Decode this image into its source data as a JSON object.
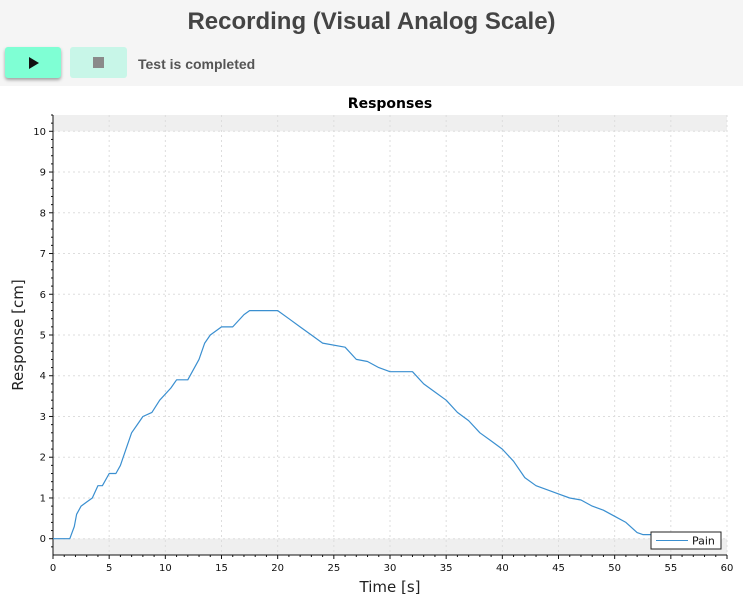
{
  "header": {
    "title": "Recording (Visual Analog Scale)",
    "play_icon": "play-icon",
    "stop_icon": "stop-icon",
    "status": "Test is completed"
  },
  "colors": {
    "play_button": "#7fffd4",
    "stop_button": "#c8f6e8",
    "series": "#3a8fd0"
  },
  "chart_data": {
    "type": "line",
    "title": "Responses",
    "xlabel": "Time [s]",
    "ylabel": "Response [cm]",
    "xlim": [
      0,
      60
    ],
    "ylim": [
      -0.4,
      10.4
    ],
    "x_ticks": [
      0,
      5,
      10,
      15,
      20,
      25,
      30,
      35,
      40,
      45,
      50,
      55,
      60
    ],
    "y_ticks": [
      0,
      1,
      2,
      3,
      4,
      5,
      6,
      7,
      8,
      9,
      10
    ],
    "grid": true,
    "legend_position": "bottom-right",
    "series": [
      {
        "name": "Pain",
        "x": [
          0,
          1.5,
          1.9,
          2.1,
          2.5,
          3.0,
          3.5,
          4.0,
          4.4,
          5.0,
          5.6,
          6.0,
          6.5,
          7.0,
          7.5,
          8.0,
          8.8,
          9.5,
          10.5,
          11.0,
          12.0,
          13.0,
          13.5,
          14.0,
          15.0,
          16.0,
          17.0,
          17.5,
          19.0,
          20.0,
          21.0,
          22.0,
          23.0,
          24.0,
          26.0,
          27.0,
          28.0,
          29.0,
          30.0,
          32.0,
          33.0,
          34.0,
          35.0,
          36.0,
          37.0,
          38.0,
          39.0,
          40.0,
          41.0,
          42.0,
          43.0,
          44.0,
          45.0,
          46.0,
          47.0,
          48.0,
          49.0,
          50.0,
          51.0,
          52.0,
          52.5,
          55.0
        ],
        "y": [
          0,
          0,
          0.3,
          0.6,
          0.8,
          0.9,
          1.0,
          1.3,
          1.3,
          1.6,
          1.6,
          1.8,
          2.2,
          2.6,
          2.8,
          3.0,
          3.1,
          3.4,
          3.7,
          3.9,
          3.9,
          4.4,
          4.8,
          5.0,
          5.2,
          5.2,
          5.5,
          5.6,
          5.6,
          5.6,
          5.4,
          5.2,
          5.0,
          4.8,
          4.7,
          4.4,
          4.35,
          4.2,
          4.1,
          4.1,
          3.8,
          3.6,
          3.4,
          3.1,
          2.9,
          2.6,
          2.4,
          2.2,
          1.9,
          1.5,
          1.3,
          1.2,
          1.1,
          1.0,
          0.95,
          0.8,
          0.7,
          0.55,
          0.4,
          0.15,
          0.1,
          0.1
        ]
      }
    ]
  }
}
